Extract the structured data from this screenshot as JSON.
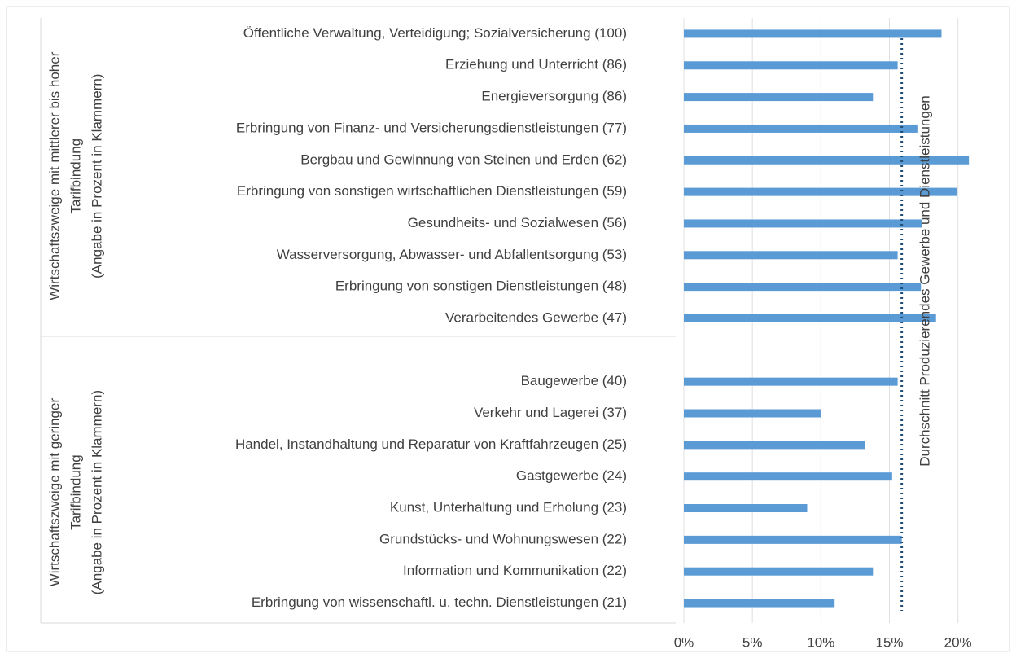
{
  "chart_data": {
    "type": "bar",
    "orientation": "horizontal",
    "color": "#5b9bd5",
    "groups": [
      {
        "label": [
          "Wirtschaftszweige mit mittlerer bis hoher",
          "Tarifbindung",
          "(Angabe in Prozent in Klammern)"
        ],
        "categories": [
          "Öffentliche Verwaltung, Verteidigung; Sozialversicherung (100)",
          "Erziehung und Unterricht (86)",
          "Energieversorgung (86)",
          "Erbringung von Finanz- und Versicherungsdienstleistungen (77)",
          "Bergbau und Gewinnung von Steinen und Erden (62)",
          "Erbringung von sonstigen wirtschaftlichen Dienstleistungen (59)",
          "Gesundheits- und Sozialwesen (56)",
          "Wasserversorgung, Abwasser- und Abfallentsorgung (53)",
          "Erbringung von sonstigen Dienstleistungen (48)",
          "Verarbeitendes Gewerbe (47)"
        ],
        "values": [
          18.8,
          15.6,
          13.8,
          17.1,
          20.8,
          19.9,
          17.4,
          15.6,
          17.3,
          18.4
        ]
      },
      {
        "label": [
          "Wirtschaftszweige mit geringer",
          "Tarifbindung",
          "(Angabe in Prozent in Klammern)"
        ],
        "categories": [
          "Baugewerbe (40)",
          "Verkehr und Lagerei (37)",
          "Handel, Instandhaltung und Reparatur von Kraftfahrzeugen (25)",
          "Gastgewerbe (24)",
          "Kunst, Unterhaltung und Erholung (23)",
          "Grundstücks- und Wohnungswesen (22)",
          "Information und Kommunikation (22)",
          "Erbringung von wissenschaftl. u. techn. Dienstleistungen (21)"
        ],
        "values": [
          15.6,
          10.0,
          13.2,
          15.2,
          9.0,
          15.9,
          13.8,
          11.0
        ]
      }
    ],
    "reference_line": {
      "value": 15.9,
      "label": "Durchschnitt Produzierendes Gewerbe und Dienstleistungen",
      "color": "#1f4e79"
    },
    "xlim": [
      0,
      24
    ],
    "xticks": [
      {
        "value": 0,
        "label": "0%"
      },
      {
        "value": 5,
        "label": "5%"
      },
      {
        "value": 10,
        "label": "10%"
      },
      {
        "value": 15,
        "label": "15%"
      },
      {
        "value": 20,
        "label": "20%"
      }
    ],
    "grid": true
  }
}
